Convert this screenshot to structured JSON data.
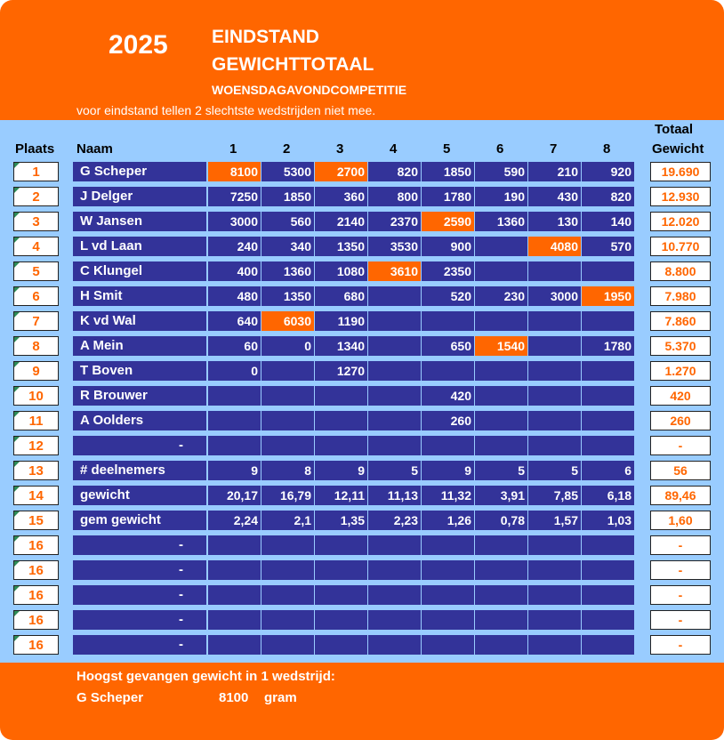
{
  "header": {
    "year": "2025",
    "title_line1": "EINDSTAND",
    "title_line2": "GEWICHTTOTAAL",
    "subtitle": "WOENSDAGAVONDCOMPETITIE",
    "note": "voor eindstand tellen 2 slechtste wedstrijden niet mee."
  },
  "columns": {
    "plaats": "Plaats",
    "naam": "Naam",
    "matches": [
      "1",
      "2",
      "3",
      "4",
      "5",
      "6",
      "7",
      "8"
    ],
    "totaal_line1": "Totaal",
    "totaal_line2": "Gewicht"
  },
  "colors": {
    "frame": "#ff6600",
    "panel": "#99ccff",
    "cell": "#333399",
    "highlight": "#ff6600"
  },
  "rows": [
    {
      "place": "1",
      "name": "G Scheper",
      "values": [
        "8100",
        "5300",
        "2700",
        "820",
        "1850",
        "590",
        "210",
        "920"
      ],
      "highlight": [
        0,
        2
      ],
      "total": "19.690"
    },
    {
      "place": "2",
      "name": "J Delger",
      "values": [
        "7250",
        "1850",
        "360",
        "800",
        "1780",
        "190",
        "430",
        "820"
      ],
      "highlight": [],
      "total": "12.930"
    },
    {
      "place": "3",
      "name": "W Jansen",
      "values": [
        "3000",
        "560",
        "2140",
        "2370",
        "2590",
        "1360",
        "130",
        "140"
      ],
      "highlight": [
        4
      ],
      "total": "12.020"
    },
    {
      "place": "4",
      "name": "L vd Laan",
      "values": [
        "240",
        "340",
        "1350",
        "3530",
        "900",
        "",
        "4080",
        "570"
      ],
      "highlight": [
        6
      ],
      "total": "10.770"
    },
    {
      "place": "5",
      "name": "C Klungel",
      "values": [
        "400",
        "1360",
        "1080",
        "3610",
        "2350",
        "",
        "",
        ""
      ],
      "highlight": [
        3
      ],
      "total": "8.800"
    },
    {
      "place": "6",
      "name": "H Smit",
      "values": [
        "480",
        "1350",
        "680",
        "",
        "520",
        "230",
        "3000",
        "1950"
      ],
      "highlight": [
        7
      ],
      "total": "7.980"
    },
    {
      "place": "7",
      "name": "K vd Wal",
      "values": [
        "640",
        "6030",
        "1190",
        "",
        "",
        "",
        "",
        ""
      ],
      "highlight": [
        1
      ],
      "total": "7.860"
    },
    {
      "place": "8",
      "name": "A Mein",
      "values": [
        "60",
        "0",
        "1340",
        "",
        "650",
        "1540",
        "",
        "1780"
      ],
      "highlight": [
        5
      ],
      "total": "5.370"
    },
    {
      "place": "9",
      "name": "T Boven",
      "values": [
        "0",
        "",
        "1270",
        "",
        "",
        "",
        "",
        ""
      ],
      "highlight": [],
      "total": "1.270"
    },
    {
      "place": "10",
      "name": "R Brouwer",
      "values": [
        "",
        "",
        "",
        "",
        "420",
        "",
        "",
        ""
      ],
      "highlight": [],
      "total": "420"
    },
    {
      "place": "11",
      "name": "A Oolders",
      "values": [
        "",
        "",
        "",
        "",
        "260",
        "",
        "",
        ""
      ],
      "highlight": [],
      "total": "260"
    },
    {
      "place": "12",
      "name": "-",
      "dash": true,
      "values": [
        "",
        "",
        "",
        "",
        "",
        "",
        "",
        ""
      ],
      "highlight": [],
      "total": "-"
    },
    {
      "place": "13",
      "name": "# deelnemers",
      "values": [
        "9",
        "8",
        "9",
        "5",
        "9",
        "5",
        "5",
        "6"
      ],
      "highlight": [],
      "total": "56"
    },
    {
      "place": "14",
      "name": "gewicht",
      "values": [
        "20,17",
        "16,79",
        "12,11",
        "11,13",
        "11,32",
        "3,91",
        "7,85",
        "6,18"
      ],
      "highlight": [],
      "total": "89,46"
    },
    {
      "place": "15",
      "name": "gem gewicht",
      "values": [
        "2,24",
        "2,1",
        "1,35",
        "2,23",
        "1,26",
        "0,78",
        "1,57",
        "1,03"
      ],
      "highlight": [],
      "total": "1,60"
    },
    {
      "place": "16",
      "name": "-",
      "dash": true,
      "values": [
        "",
        "",
        "",
        "",
        "",
        "",
        "",
        ""
      ],
      "highlight": [],
      "total": "-"
    },
    {
      "place": "16",
      "name": "-",
      "dash": true,
      "values": [
        "",
        "",
        "",
        "",
        "",
        "",
        "",
        ""
      ],
      "highlight": [],
      "total": "-"
    },
    {
      "place": "16",
      "name": "-",
      "dash": true,
      "values": [
        "",
        "",
        "",
        "",
        "",
        "",
        "",
        ""
      ],
      "highlight": [],
      "total": "-"
    },
    {
      "place": "16",
      "name": "-",
      "dash": true,
      "values": [
        "",
        "",
        "",
        "",
        "",
        "",
        "",
        ""
      ],
      "highlight": [],
      "total": "-"
    },
    {
      "place": "16",
      "name": "-",
      "dash": true,
      "values": [
        "",
        "",
        "",
        "",
        "",
        "",
        "",
        ""
      ],
      "highlight": [],
      "total": "-"
    }
  ],
  "footer": {
    "label": "Hoogst gevangen gewicht in 1 wedstrijd:",
    "name": "G Scheper",
    "value": "8100",
    "unit": "gram"
  }
}
